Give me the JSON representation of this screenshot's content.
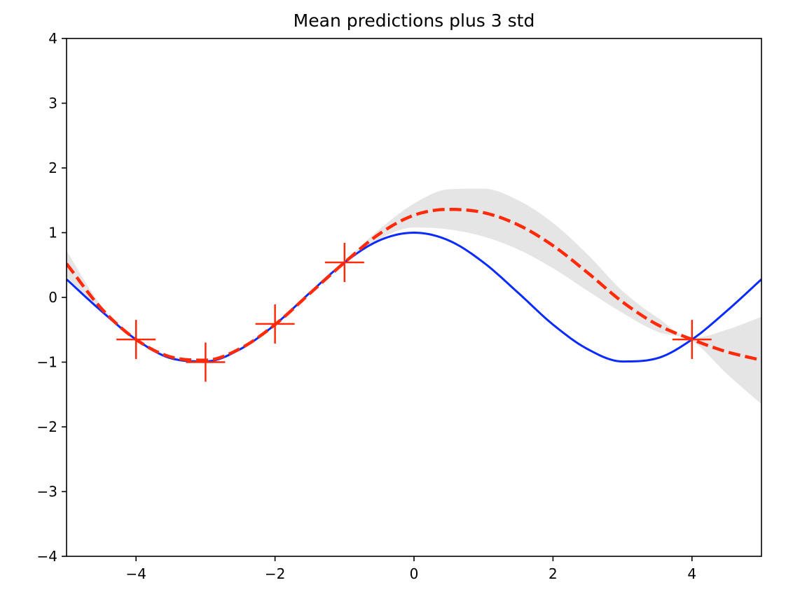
{
  "chart_data": {
    "type": "line",
    "title": "Mean predictions plus 3 std",
    "xlabel": "",
    "ylabel": "",
    "xlim": [
      -5,
      5
    ],
    "ylim": [
      -4,
      4
    ],
    "xticks": [
      -4,
      -2,
      0,
      2,
      4
    ],
    "yticks": [
      -4,
      -3,
      -2,
      -1,
      0,
      1,
      2,
      3,
      4
    ],
    "x_tick_labels": [
      "−4",
      "−2",
      "0",
      "2",
      "4"
    ],
    "y_tick_labels": [
      "−4",
      "−3",
      "−2",
      "−1",
      "0",
      "1",
      "2",
      "3",
      "4"
    ],
    "grid": false,
    "legend": "none",
    "colors": {
      "true_function": "#0a2bff",
      "mean": "#ff2a0a",
      "band": "#e5e5e5",
      "observations": "#ff2a0a"
    },
    "series": [
      {
        "style": "solid",
        "x": [
          -5,
          -4.5,
          -4,
          -3.5,
          -3,
          -2.5,
          -2,
          -1.5,
          -1,
          -0.5,
          0,
          0.5,
          1,
          1.5,
          2,
          2.5,
          3,
          3.5,
          4,
          4.5,
          5
        ],
        "y": [
          0.28,
          -0.21,
          -0.65,
          -0.94,
          -0.99,
          -0.8,
          -0.42,
          0.07,
          0.54,
          0.88,
          1.0,
          0.88,
          0.54,
          0.07,
          -0.42,
          -0.8,
          -0.99,
          -0.94,
          -0.65,
          -0.21,
          0.28
        ]
      },
      {
        "style": "dashed",
        "x": [
          -5,
          -4.5,
          -4,
          -3.5,
          -3,
          -2.5,
          -2,
          -1.5,
          -1,
          -0.5,
          0,
          0.5,
          1,
          1.5,
          2,
          2.5,
          3,
          3.5,
          4,
          4.5,
          5
        ],
        "y": [
          0.52,
          -0.17,
          -0.65,
          -0.92,
          -0.97,
          -0.79,
          -0.42,
          0.06,
          0.54,
          0.98,
          1.27,
          1.36,
          1.31,
          1.12,
          0.8,
          0.38,
          -0.07,
          -0.42,
          -0.65,
          -0.84,
          -0.97
        ]
      }
    ],
    "band": {
      "x": [
        -5,
        -4.5,
        -4,
        -3.5,
        -3,
        -2.5,
        -2,
        -1.5,
        -1,
        -0.5,
        0,
        0.5,
        1,
        1.5,
        2,
        2.5,
        3,
        3.5,
        4,
        4.5,
        5
      ],
      "upper": [
        0.72,
        -0.13,
        -0.65,
        -0.9,
        -0.97,
        -0.78,
        -0.42,
        0.07,
        0.56,
        1.05,
        1.45,
        1.67,
        1.68,
        1.5,
        1.15,
        0.66,
        0.1,
        -0.31,
        -0.63,
        -0.5,
        -0.3
      ],
      "lower": [
        0.32,
        -0.22,
        -0.65,
        -0.95,
        -0.99,
        -0.8,
        -0.43,
        0.05,
        0.52,
        0.9,
        1.08,
        1.05,
        0.94,
        0.74,
        0.45,
        0.1,
        -0.24,
        -0.53,
        -0.67,
        -1.18,
        -1.65
      ]
    },
    "observations": {
      "x": [
        -4,
        -3,
        -2,
        -1,
        4
      ],
      "y": [
        -0.65,
        -1.0,
        -0.41,
        0.54,
        -0.65
      ]
    }
  }
}
